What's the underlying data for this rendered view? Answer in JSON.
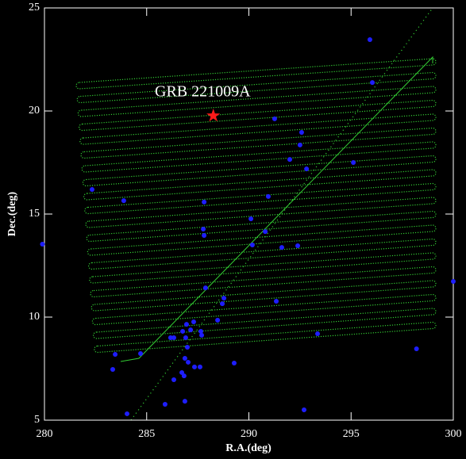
{
  "chart_data": {
    "type": "scatter",
    "xlabel": "R.A.(deg)",
    "ylabel": "Dec.(deg)",
    "xlim": [
      280,
      300
    ],
    "ylim": [
      5,
      25
    ],
    "xticks": [
      280,
      285,
      290,
      295,
      300
    ],
    "yticks": [
      5,
      10,
      15,
      20,
      25
    ],
    "point_color": "#1e1eff",
    "scan_color": "#33cc33",
    "x": [
      295.92,
      296.04,
      291.26,
      292.58,
      292.5,
      292.0,
      292.82,
      295.11,
      282.33,
      283.88,
      287.81,
      290.95,
      290.1,
      287.77,
      287.81,
      290.8,
      290.17,
      291.61,
      292.39,
      279.9,
      287.88,
      288.78,
      288.7,
      291.34,
      288.47,
      293.36,
      300.0,
      298.2,
      283.46,
      284.7,
      286.17,
      286.33,
      286.95,
      287.3,
      287.15,
      286.76,
      287.65,
      287.69,
      286.91,
      286.99,
      286.87,
      287.03,
      287.34,
      287.61,
      286.72,
      286.83,
      286.33,
      289.28,
      283.34,
      286.87,
      285.9,
      284.04,
      292.7
    ],
    "y": [
      23.46,
      21.38,
      19.62,
      18.96,
      18.35,
      17.65,
      17.19,
      17.5,
      16.19,
      15.65,
      15.58,
      15.85,
      14.77,
      14.27,
      13.96,
      14.15,
      13.5,
      13.38,
      13.46,
      13.54,
      11.42,
      10.92,
      10.65,
      10.77,
      9.85,
      9.19,
      11.73,
      8.46,
      8.19,
      8.23,
      9.0,
      9.0,
      9.65,
      9.77,
      9.38,
      9.31,
      9.31,
      9.12,
      9.0,
      8.54,
      8.0,
      7.81,
      7.58,
      7.58,
      7.31,
      7.15,
      6.96,
      7.77,
      7.46,
      5.92,
      5.77,
      5.31,
      5.5
    ],
    "annotation": {
      "text": "GRB 221009A",
      "x": 288.26,
      "y": 19.77,
      "color": "#ff1a1a"
    }
  }
}
